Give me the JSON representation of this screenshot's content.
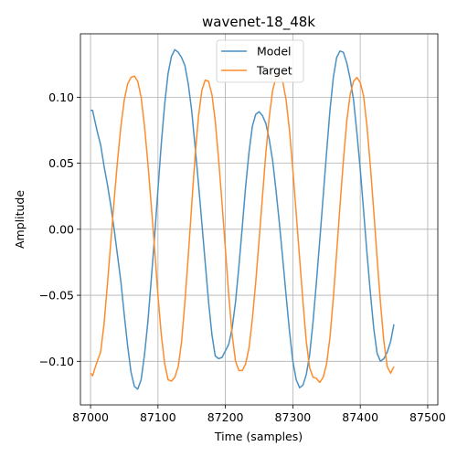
{
  "chart_data": {
    "type": "line",
    "title": "wavenet-18_48k",
    "xlabel": "Time (samples)",
    "ylabel": "Amplitude",
    "xlim": [
      86985,
      87515
    ],
    "ylim": [
      -0.133,
      0.148
    ],
    "xticks": [
      87000,
      87100,
      87200,
      87300,
      87400,
      87500
    ],
    "yticks": [
      -0.1,
      -0.05,
      0.0,
      0.05,
      0.1
    ],
    "ytick_labels": [
      "−0.10",
      "−0.05",
      "0.00",
      "0.05",
      "0.10"
    ],
    "grid": true,
    "legend_position": "top-center",
    "series": [
      {
        "name": "Model",
        "color": "#4a90c2",
        "points": [
          [
            87000,
            0.09
          ],
          [
            87003,
            0.09
          ],
          [
            87006,
            0.083
          ],
          [
            87010,
            0.074
          ],
          [
            87015,
            0.064
          ],
          [
            87020,
            0.048
          ],
          [
            87025,
            0.034
          ],
          [
            87030,
            0.018
          ],
          [
            87035,
            0.0
          ],
          [
            87040,
            -0.02
          ],
          [
            87045,
            -0.04
          ],
          [
            87050,
            -0.065
          ],
          [
            87055,
            -0.088
          ],
          [
            87060,
            -0.108
          ],
          [
            87065,
            -0.119
          ],
          [
            87070,
            -0.121
          ],
          [
            87075,
            -0.114
          ],
          [
            87080,
            -0.095
          ],
          [
            87085,
            -0.07
          ],
          [
            87090,
            -0.038
          ],
          [
            87095,
            -0.005
          ],
          [
            87100,
            0.03
          ],
          [
            87105,
            0.065
          ],
          [
            87110,
            0.095
          ],
          [
            87115,
            0.118
          ],
          [
            87120,
            0.131
          ],
          [
            87125,
            0.136
          ],
          [
            87130,
            0.134
          ],
          [
            87135,
            0.13
          ],
          [
            87140,
            0.124
          ],
          [
            87145,
            0.11
          ],
          [
            87150,
            0.09
          ],
          [
            87155,
            0.063
          ],
          [
            87160,
            0.035
          ],
          [
            87165,
            0.005
          ],
          [
            87170,
            -0.025
          ],
          [
            87175,
            -0.055
          ],
          [
            87180,
            -0.08
          ],
          [
            87185,
            -0.096
          ],
          [
            87190,
            -0.098
          ],
          [
            87195,
            -0.097
          ],
          [
            87200,
            -0.092
          ],
          [
            87205,
            -0.087
          ],
          [
            87210,
            -0.075
          ],
          [
            87215,
            -0.055
          ],
          [
            87220,
            -0.028
          ],
          [
            87225,
            0.002
          ],
          [
            87230,
            0.032
          ],
          [
            87235,
            0.058
          ],
          [
            87240,
            0.078
          ],
          [
            87245,
            0.087
          ],
          [
            87250,
            0.089
          ],
          [
            87255,
            0.086
          ],
          [
            87260,
            0.08
          ],
          [
            87265,
            0.068
          ],
          [
            87270,
            0.052
          ],
          [
            87275,
            0.03
          ],
          [
            87280,
            0.005
          ],
          [
            87285,
            -0.022
          ],
          [
            87290,
            -0.05
          ],
          [
            87295,
            -0.077
          ],
          [
            87300,
            -0.1
          ],
          [
            87305,
            -0.114
          ],
          [
            87310,
            -0.12
          ],
          [
            87315,
            -0.118
          ],
          [
            87320,
            -0.11
          ],
          [
            87325,
            -0.095
          ],
          [
            87330,
            -0.07
          ],
          [
            87335,
            -0.04
          ],
          [
            87340,
            -0.008
          ],
          [
            87345,
            0.025
          ],
          [
            87350,
            0.058
          ],
          [
            87355,
            0.09
          ],
          [
            87360,
            0.115
          ],
          [
            87365,
            0.13
          ],
          [
            87370,
            0.135
          ],
          [
            87375,
            0.134
          ],
          [
            87380,
            0.126
          ],
          [
            87385,
            0.114
          ],
          [
            87390,
            0.098
          ],
          [
            87395,
            0.073
          ],
          [
            87400,
            0.045
          ],
          [
            87405,
            0.014
          ],
          [
            87410,
            -0.018
          ],
          [
            87415,
            -0.048
          ],
          [
            87420,
            -0.075
          ],
          [
            87425,
            -0.094
          ],
          [
            87430,
            -0.1
          ],
          [
            87435,
            -0.098
          ],
          [
            87440,
            -0.093
          ],
          [
            87445,
            -0.085
          ],
          [
            87450,
            -0.072
          ]
        ]
      },
      {
        "name": "Target",
        "color": "#ff8c2b",
        "points": [
          [
            87000,
            -0.109
          ],
          [
            87003,
            -0.111
          ],
          [
            87006,
            -0.106
          ],
          [
            87010,
            -0.1
          ],
          [
            87015,
            -0.093
          ],
          [
            87020,
            -0.072
          ],
          [
            87025,
            -0.042
          ],
          [
            87030,
            -0.01
          ],
          [
            87035,
            0.022
          ],
          [
            87040,
            0.052
          ],
          [
            87045,
            0.078
          ],
          [
            87050,
            0.098
          ],
          [
            87055,
            0.11
          ],
          [
            87060,
            0.115
          ],
          [
            87065,
            0.116
          ],
          [
            87070,
            0.112
          ],
          [
            87075,
            0.1
          ],
          [
            87080,
            0.078
          ],
          [
            87085,
            0.05
          ],
          [
            87090,
            0.018
          ],
          [
            87095,
            -0.015
          ],
          [
            87100,
            -0.05
          ],
          [
            87105,
            -0.08
          ],
          [
            87110,
            -0.102
          ],
          [
            87115,
            -0.114
          ],
          [
            87120,
            -0.115
          ],
          [
            87125,
            -0.112
          ],
          [
            87130,
            -0.104
          ],
          [
            87135,
            -0.085
          ],
          [
            87140,
            -0.055
          ],
          [
            87145,
            -0.02
          ],
          [
            87150,
            0.018
          ],
          [
            87155,
            0.055
          ],
          [
            87160,
            0.085
          ],
          [
            87165,
            0.105
          ],
          [
            87170,
            0.113
          ],
          [
            87175,
            0.112
          ],
          [
            87180,
            0.102
          ],
          [
            87185,
            0.082
          ],
          [
            87190,
            0.053
          ],
          [
            87195,
            0.02
          ],
          [
            87200,
            -0.015
          ],
          [
            87205,
            -0.05
          ],
          [
            87210,
            -0.08
          ],
          [
            87215,
            -0.1
          ],
          [
            87220,
            -0.107
          ],
          [
            87225,
            -0.107
          ],
          [
            87230,
            -0.102
          ],
          [
            87235,
            -0.09
          ],
          [
            87240,
            -0.068
          ],
          [
            87245,
            -0.04
          ],
          [
            87250,
            -0.008
          ],
          [
            87255,
            0.025
          ],
          [
            87260,
            0.058
          ],
          [
            87265,
            0.085
          ],
          [
            87270,
            0.105
          ],
          [
            87275,
            0.115
          ],
          [
            87280,
            0.116
          ],
          [
            87285,
            0.112
          ],
          [
            87290,
            0.098
          ],
          [
            87295,
            0.075
          ],
          [
            87300,
            0.045
          ],
          [
            87305,
            0.012
          ],
          [
            87310,
            -0.022
          ],
          [
            87315,
            -0.055
          ],
          [
            87320,
            -0.085
          ],
          [
            87325,
            -0.105
          ],
          [
            87330,
            -0.112
          ],
          [
            87335,
            -0.113
          ],
          [
            87340,
            -0.116
          ],
          [
            87345,
            -0.112
          ],
          [
            87350,
            -0.102
          ],
          [
            87355,
            -0.082
          ],
          [
            87360,
            -0.052
          ],
          [
            87365,
            -0.018
          ],
          [
            87370,
            0.018
          ],
          [
            87375,
            0.052
          ],
          [
            87380,
            0.082
          ],
          [
            87385,
            0.102
          ],
          [
            87390,
            0.112
          ],
          [
            87395,
            0.115
          ],
          [
            87400,
            0.111
          ],
          [
            87405,
            0.101
          ],
          [
            87410,
            0.078
          ],
          [
            87415,
            0.048
          ],
          [
            87420,
            0.014
          ],
          [
            87425,
            -0.022
          ],
          [
            87430,
            -0.056
          ],
          [
            87435,
            -0.085
          ],
          [
            87440,
            -0.104
          ],
          [
            87445,
            -0.109
          ],
          [
            87450,
            -0.104
          ]
        ]
      }
    ]
  }
}
